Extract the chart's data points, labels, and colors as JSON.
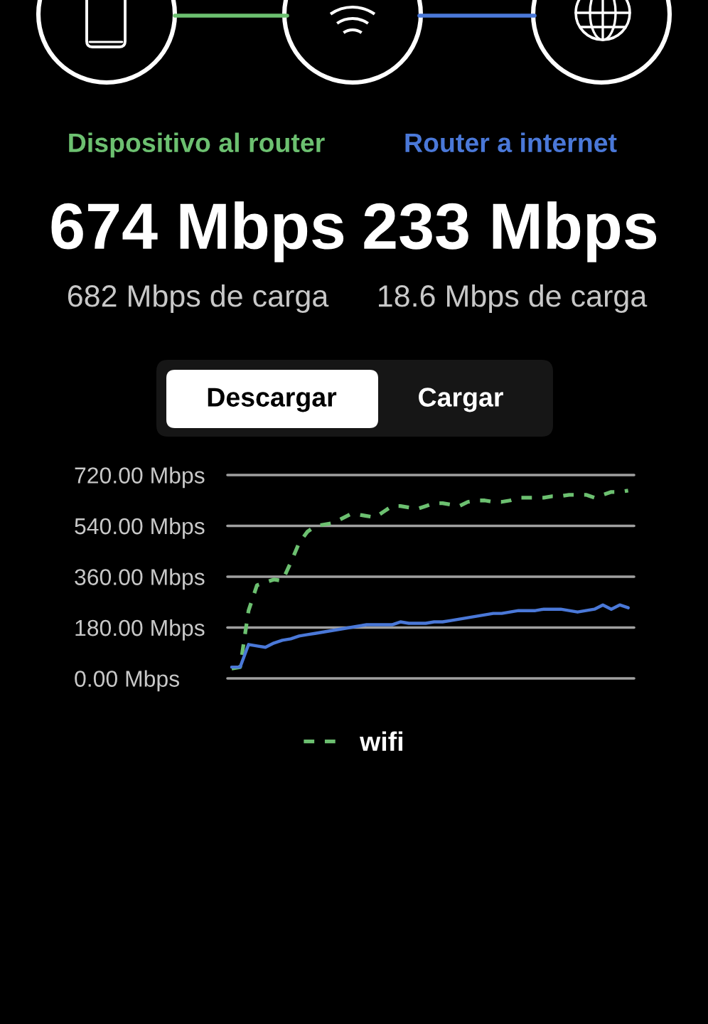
{
  "chart_data": {
    "type": "line",
    "annotations": [
      "Dispositivo al router",
      "Router a internet",
      "674 Mbps",
      "233 Mbps",
      "682 Mbps de carga",
      "18.6 Mbps de carga",
      "Descargar",
      "Cargar"
    ],
    "categories": [
      null,
      null,
      null,
      null,
      null,
      null,
      null,
      null,
      null,
      null,
      null,
      null,
      null,
      null,
      null,
      null,
      null,
      null,
      null,
      null,
      null,
      null,
      null,
      null,
      null,
      null,
      null,
      null,
      null,
      null,
      null,
      null,
      null,
      null,
      null,
      null,
      null,
      null,
      null,
      null,
      null,
      null,
      null,
      null,
      null,
      null,
      null,
      null
    ],
    "series": [
      {
        "name": "wifi",
        "color": "#6cc070",
        "line_style": "dashed",
        "values": [
          35,
          40,
          240,
          330,
          340,
          350,
          345,
          410,
          480,
          520,
          540,
          545,
          550,
          565,
          580,
          580,
          575,
          570,
          590,
          610,
          610,
          605,
          600,
          610,
          620,
          620,
          615,
          610,
          625,
          630,
          630,
          625,
          625,
          630,
          640,
          640,
          640,
          640,
          645,
          645,
          650,
          650,
          650,
          640,
          650,
          660,
          660,
          665
        ]
      },
      {
        "color": "#4a78d8",
        "line_style": "solid",
        "values": [
          40,
          40,
          120,
          115,
          110,
          125,
          135,
          140,
          150,
          155,
          160,
          165,
          170,
          175,
          180,
          185,
          190,
          190,
          190,
          190,
          200,
          195,
          195,
          195,
          200,
          200,
          205,
          210,
          215,
          220,
          225,
          230,
          230,
          235,
          240,
          240,
          240,
          245,
          245,
          245,
          240,
          235,
          240,
          245,
          260,
          245,
          260,
          250
        ]
      }
    ],
    "ylim": [
      0,
      720
    ],
    "yticks": [
      {
        "value": 0,
        "label": "0.00 Mbps"
      },
      {
        "value": 180,
        "label": "180.00 Mbps"
      },
      {
        "value": 360,
        "label": "360.00 Mbps"
      },
      {
        "value": 540,
        "label": "540.00 Mbps"
      },
      {
        "value": 720,
        "label": "720.00 Mbps"
      }
    ],
    "grid": "y",
    "legend": "bottom",
    "tick_labels": "y"
  }
}
